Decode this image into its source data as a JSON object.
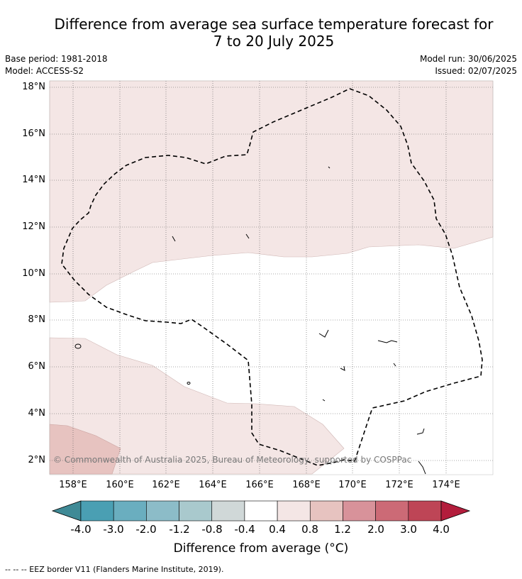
{
  "title_line1": "Difference from average sea surface temperature forecast for",
  "title_line2": "7 to 20 July 2025",
  "base_period": "Base period: 1981-2018",
  "model": "Model: ACCESS-S2",
  "model_run": "Model run: 30/06/2025",
  "issued": "Issued: 02/07/2025",
  "lat_labels": [
    "18°N",
    "16°N",
    "14°N",
    "12°N",
    "10°N",
    "8°N",
    "6°N",
    "4°N",
    "2°N"
  ],
  "lon_labels": [
    "158°E",
    "160°E",
    "162°E",
    "164°E",
    "166°E",
    "168°E",
    "170°E",
    "172°E",
    "174°E"
  ],
  "copyright": "© Commonwealth of Australia 2025, Bureau of Meteorology, supported by COSPPac",
  "colorbar": {
    "ticks": [
      "-4.0",
      "-3.0",
      "-2.0",
      "-1.2",
      "-0.8",
      "-0.4",
      "0.4",
      "0.8",
      "1.2",
      "2.0",
      "3.0",
      "4.0"
    ],
    "colors": [
      "#4a9fb3",
      "#6aaebf",
      "#8cbcc8",
      "#a9c9cd",
      "#d0d8d8",
      "#ffffff",
      "#f4e6e5",
      "#e7c3c0",
      "#d8929a",
      "#cc6a76",
      "#be4556"
    ],
    "under_color": "#3f8a96",
    "over_color": "#b31d3c",
    "title": "Difference from average (°C)"
  },
  "legend_footer": "-- -- -- EEZ border V11 (Flanders Marine Institute, 2019).",
  "map": {
    "fill_levels": [
      "0.4 to 0.8",
      "0.8 to 1.2"
    ],
    "colors": {
      "light_pink": "#f4e6e5",
      "pink": "#e7c3c0",
      "white": "#ffffff"
    }
  }
}
